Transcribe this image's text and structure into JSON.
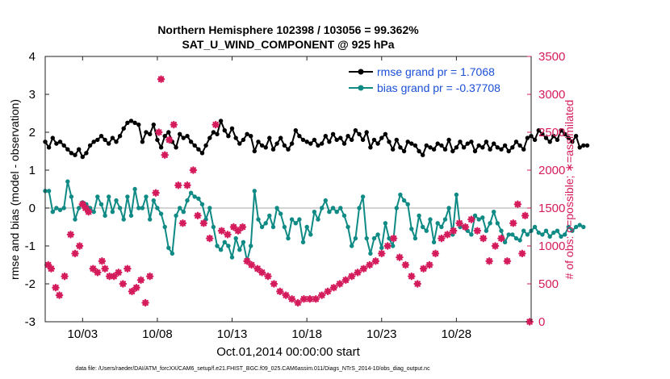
{
  "chart_data": {
    "type": "line",
    "title": "Northern Hemisphere 102398 / 103056 = 99.362%",
    "subtitle": "SAT_U_WIND_COMPONENT @ 925 hPa",
    "xlabel": "Oct.01,2014 00:00:00 start",
    "ylabel_left": "rmse and bias (model - observation)",
    "ylabel_right": "# of obs: o=possible; ∗=assimilated",
    "footer": "data file: /Users/raeder/DAI/ATM_forcXX/CAM6_setup/f.e21.FHIST_BGC.f09_025.CAM6assim.011/Diags_NTrS_2014-10/obs_diag_output.nc",
    "xlim": [
      0.5,
      33
    ],
    "ylim_left": [
      -3,
      4
    ],
    "ylim_right": [
      0,
      3500
    ],
    "grid": false,
    "legend_placement": "top-right",
    "x_ticks": [
      {
        "value": 3,
        "label": "10/03"
      },
      {
        "value": 8,
        "label": "10/08"
      },
      {
        "value": 13,
        "label": "10/13"
      },
      {
        "value": 18,
        "label": "10/18"
      },
      {
        "value": 23,
        "label": "10/23"
      },
      {
        "value": 28,
        "label": "10/28"
      }
    ],
    "y_ticks_left": [
      {
        "value": -3,
        "label": "-3"
      },
      {
        "value": -2,
        "label": "-2"
      },
      {
        "value": -1,
        "label": "-1"
      },
      {
        "value": 0,
        "label": "0"
      },
      {
        "value": 1,
        "label": "1"
      },
      {
        "value": 2,
        "label": "2"
      },
      {
        "value": 3,
        "label": "3"
      },
      {
        "value": 4,
        "label": "4"
      }
    ],
    "y_ticks_right": [
      {
        "value": 0,
        "label": "0"
      },
      {
        "value": 500,
        "label": "500"
      },
      {
        "value": 1000,
        "label": "1000"
      },
      {
        "value": 1500,
        "label": "1500"
      },
      {
        "value": 2000,
        "label": "2000"
      },
      {
        "value": 2500,
        "label": "2500"
      },
      {
        "value": 3000,
        "label": "3000"
      },
      {
        "value": 3500,
        "label": "3500"
      }
    ],
    "x_start": 0.5,
    "x_step": 0.25,
    "series": [
      {
        "name": "rmse grand pr = 1.7068",
        "color": "#000000",
        "axis": "left",
        "values": [
          1.75,
          1.6,
          1.85,
          1.7,
          1.75,
          1.65,
          1.55,
          1.45,
          1.4,
          1.55,
          1.35,
          1.45,
          1.65,
          1.75,
          1.8,
          1.9,
          1.8,
          1.7,
          1.85,
          1.75,
          1.9,
          2.1,
          2.25,
          2.3,
          2.25,
          2.2,
          1.75,
          2.0,
          1.95,
          2.2,
          1.8,
          1.6,
          1.9,
          2.0,
          1.75,
          1.6,
          1.95,
          1.85,
          1.9,
          1.75,
          1.65,
          1.55,
          1.45,
          1.65,
          1.85,
          2.0,
          1.95,
          2.3,
          2.05,
          1.9,
          2.1,
          1.85,
          1.7,
          1.8,
          1.95,
          1.9,
          1.5,
          1.75,
          1.65,
          1.6,
          1.85,
          1.55,
          1.7,
          1.85,
          1.65,
          1.55,
          1.7,
          2.05,
          1.9,
          1.8,
          1.75,
          1.7,
          1.8,
          1.65,
          1.7,
          1.9,
          1.75,
          1.95,
          1.8,
          1.85,
          1.7,
          1.9,
          1.8,
          2.05,
          1.95,
          1.8,
          2.0,
          1.6,
          1.8,
          1.7,
          1.85,
          1.95,
          1.75,
          1.55,
          1.8,
          1.6,
          1.5,
          1.75,
          1.7,
          1.65,
          1.5,
          1.4,
          1.65,
          1.6,
          1.55,
          1.7,
          1.65,
          1.55,
          1.8,
          1.5,
          1.6,
          1.75,
          1.6,
          1.7,
          1.75,
          1.5,
          1.65,
          1.6,
          1.75,
          1.55,
          1.7,
          1.6,
          1.55,
          1.65,
          1.5,
          1.6,
          1.75,
          1.65,
          1.55,
          1.85,
          1.9,
          1.8,
          2.05,
          1.95,
          1.85,
          1.75,
          1.9,
          1.8,
          2.05,
          1.95,
          1.85,
          1.75,
          1.9,
          1.6,
          1.65,
          1.65
        ]
      },
      {
        "name": "bias grand pr = -0.37708",
        "color": "#0f8a85",
        "axis": "left",
        "values": [
          0.45,
          0.45,
          -0.1,
          0.0,
          -0.05,
          0.0,
          0.7,
          0.3,
          -0.3,
          0.0,
          0.15,
          0.1,
          0.0,
          -0.1,
          0.3,
          0.1,
          -0.2,
          0.3,
          -0.1,
          0.2,
          0.0,
          -0.3,
          0.3,
          -0.2,
          0.5,
          0.0,
          0.0,
          0.3,
          -0.3,
          0.2,
          0.0,
          -0.15,
          -0.5,
          -1.05,
          -1.2,
          -0.2,
          0.0,
          -0.1,
          0.2,
          0.4,
          0.3,
          0.25,
          0.1,
          -0.3,
          0.0,
          -0.5,
          -1.0,
          -1.1,
          -0.9,
          -1.0,
          -1.3,
          -0.8,
          -1.1,
          -0.9,
          -1.4,
          -1.0,
          0.45,
          -0.3,
          -0.5,
          -0.4,
          -0.2,
          -0.5,
          0.0,
          -0.15,
          -0.5,
          -0.8,
          -0.3,
          -0.4,
          -0.3,
          -0.9,
          -0.5,
          -0.7,
          -0.1,
          -0.3,
          0.0,
          0.2,
          -0.1,
          0.0,
          -0.1,
          0.0,
          -0.2,
          -0.5,
          -1.0,
          -0.8,
          0.0,
          0.3,
          -0.8,
          -1.2,
          -0.8,
          -0.7,
          -1.05,
          -0.4,
          -0.8,
          -1.0,
          0.0,
          0.35,
          0.2,
          0.1,
          -0.55,
          -0.8,
          -0.2,
          -0.5,
          -0.6,
          -0.3,
          -0.9,
          -0.4,
          -0.5,
          -0.3,
          0.0,
          -0.7,
          0.35,
          -0.5,
          -0.5,
          -0.6,
          -0.7,
          -0.2,
          -0.3,
          -0.25,
          -0.6,
          -0.4,
          -0.1,
          -0.4,
          -0.6,
          -0.9,
          -0.7,
          -0.7,
          -0.8,
          -0.85,
          -0.6,
          -0.7,
          -0.6,
          -0.5,
          -0.65,
          -0.7,
          -0.6,
          -0.75,
          -0.65,
          -0.6,
          -0.75,
          -0.7,
          -0.5,
          -0.6,
          -0.5,
          -0.45,
          -0.5
        ]
      }
    ],
    "obs_assimilated": {
      "color": "#d41b5c",
      "axis": "right",
      "points": [
        [
          0.7,
          750
        ],
        [
          0.9,
          700
        ],
        [
          1.2,
          450
        ],
        [
          1.45,
          350
        ],
        [
          1.8,
          600
        ],
        [
          2.2,
          1150
        ],
        [
          2.5,
          900
        ],
        [
          2.8,
          1000
        ],
        [
          3.0,
          1550
        ],
        [
          3.2,
          1500
        ],
        [
          3.4,
          1450
        ],
        [
          3.7,
          700
        ],
        [
          4.0,
          650
        ],
        [
          4.3,
          800
        ],
        [
          4.5,
          700
        ],
        [
          4.8,
          600
        ],
        [
          5.1,
          600
        ],
        [
          5.4,
          650
        ],
        [
          5.7,
          500
        ],
        [
          6.0,
          700
        ],
        [
          6.3,
          400
        ],
        [
          6.6,
          450
        ],
        [
          6.9,
          550
        ],
        [
          7.2,
          250
        ],
        [
          7.5,
          600
        ],
        [
          7.9,
          1700
        ],
        [
          8.1,
          2500
        ],
        [
          8.25,
          3200
        ],
        [
          8.5,
          2200
        ],
        [
          8.8,
          2400
        ],
        [
          9.1,
          2600
        ],
        [
          9.4,
          1800
        ],
        [
          9.7,
          1300
        ],
        [
          10.0,
          1800
        ],
        [
          10.4,
          2000
        ],
        [
          10.7,
          1400
        ],
        [
          11.1,
          1300
        ],
        [
          11.5,
          1100
        ],
        [
          11.9,
          2600
        ],
        [
          12.3,
          1200
        ],
        [
          12.7,
          1150
        ],
        [
          13.1,
          1250
        ],
        [
          13.4,
          1200
        ],
        [
          13.7,
          1250
        ],
        [
          14.0,
          800
        ],
        [
          14.3,
          750
        ],
        [
          14.7,
          700
        ],
        [
          15.0,
          650
        ],
        [
          15.4,
          600
        ],
        [
          15.8,
          500
        ],
        [
          16.2,
          400
        ],
        [
          16.6,
          350
        ],
        [
          17.0,
          300
        ],
        [
          17.4,
          250
        ],
        [
          17.8,
          300
        ],
        [
          18.2,
          300
        ],
        [
          18.6,
          300
        ],
        [
          19.0,
          350
        ],
        [
          19.4,
          400
        ],
        [
          19.8,
          450
        ],
        [
          20.2,
          500
        ],
        [
          20.6,
          550
        ],
        [
          21.0,
          600
        ],
        [
          21.4,
          650
        ],
        [
          21.8,
          700
        ],
        [
          22.2,
          750
        ],
        [
          22.6,
          800
        ],
        [
          23.0,
          900
        ],
        [
          23.4,
          1000
        ],
        [
          23.8,
          1100
        ],
        [
          24.2,
          850
        ],
        [
          24.6,
          750
        ],
        [
          25.0,
          600
        ],
        [
          25.4,
          500
        ],
        [
          25.8,
          700
        ],
        [
          26.2,
          750
        ],
        [
          26.6,
          900
        ],
        [
          27.0,
          1100
        ],
        [
          27.4,
          1150
        ],
        [
          27.8,
          1200
        ],
        [
          28.2,
          1300
        ],
        [
          28.6,
          1250
        ],
        [
          29.0,
          1350
        ],
        [
          29.4,
          1200
        ],
        [
          29.8,
          1100
        ],
        [
          30.2,
          800
        ],
        [
          30.6,
          1000
        ],
        [
          31.0,
          1100
        ],
        [
          31.4,
          800
        ],
        [
          31.8,
          1300
        ],
        [
          32.1,
          1550
        ],
        [
          32.4,
          900
        ],
        [
          32.6,
          1400
        ],
        [
          32.9,
          0
        ]
      ]
    }
  }
}
